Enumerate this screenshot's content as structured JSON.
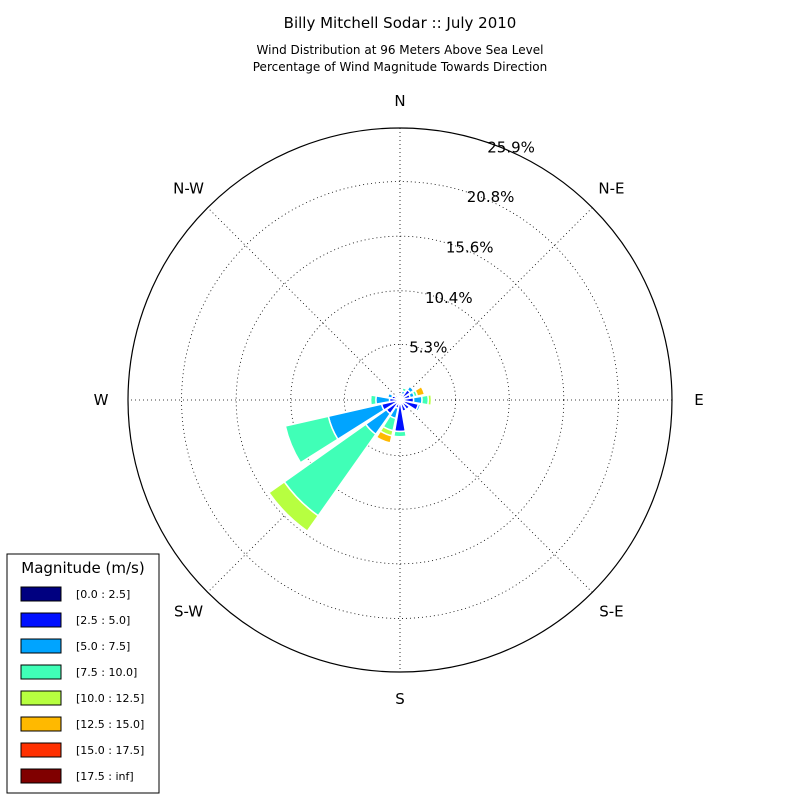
{
  "chart_data": {
    "type": "windrose",
    "title": "Billy Mitchell Sodar :: July 2010",
    "subtitle_lines": [
      "Wind Distribution at 96 Meters Above Sea Level",
      "Percentage of Wind Magnitude Towards Direction"
    ],
    "direction_labels": [
      "N",
      "N-E",
      "E",
      "S-E",
      "S",
      "S-W",
      "W",
      "N-W"
    ],
    "radial_tick_labels": [
      "5.3%",
      "10.4%",
      "15.6%",
      "20.8%",
      "25.9%"
    ],
    "radial_ticks": [
      5.3,
      10.4,
      15.6,
      20.8,
      25.9
    ],
    "rmax": 25.9,
    "grid": true,
    "legend_title": "Magnitude (m/s)",
    "legend_placement": "lower-left",
    "bins": [
      {
        "label": "[0.0 : 2.5]",
        "color": "#000080"
      },
      {
        "label": "[2.5 : 5.0]",
        "color": "#0010ff"
      },
      {
        "label": "[5.0 : 7.5]",
        "color": "#00a4ff"
      },
      {
        "label": "[7.5 : 10.0]",
        "color": "#40ffb7"
      },
      {
        "label": "[10.0 : 12.5]",
        "color": "#b7ff40"
      },
      {
        "label": "[12.5 : 15.0]",
        "color": "#ffb900"
      },
      {
        "label": "[15.0 : 17.5]",
        "color": "#ff3000"
      },
      {
        "label": "[17.5 : inf]",
        "color": "#800000"
      }
    ],
    "sector_width_deg": 19.5,
    "sectors": [
      {
        "direction_deg": 0,
        "cumulative": [
          0.3,
          0.6,
          0.6,
          0.6,
          0.6,
          0.6,
          0.6,
          0.6
        ]
      },
      {
        "direction_deg": 22.5,
        "cumulative": [
          0.2,
          0.6,
          0.9,
          1.2,
          1.2,
          1.2,
          1.2,
          1.2
        ]
      },
      {
        "direction_deg": 45,
        "cumulative": [
          0.2,
          1.2,
          1.6,
          1.7,
          1.7,
          1.7,
          1.7,
          1.7
        ]
      },
      {
        "direction_deg": 67.5,
        "cumulative": [
          0.2,
          1.0,
          1.4,
          1.7,
          1.7,
          2.4,
          2.4,
          2.4
        ]
      },
      {
        "direction_deg": 90,
        "cumulative": [
          0.2,
          1.3,
          2.1,
          2.7,
          3.0,
          3.0,
          3.0,
          3.0
        ]
      },
      {
        "direction_deg": 112.5,
        "cumulative": [
          0.2,
          1.8,
          2.0,
          2.0,
          2.0,
          2.0,
          2.0,
          2.0
        ]
      },
      {
        "direction_deg": 135,
        "cumulative": [
          0.2,
          1.1,
          1.1,
          1.1,
          1.1,
          1.1,
          1.1,
          1.1
        ]
      },
      {
        "direction_deg": 157.5,
        "cumulative": [
          0.2,
          1.1,
          1.1,
          1.1,
          1.1,
          1.1,
          1.1,
          1.1
        ]
      },
      {
        "direction_deg": 180,
        "cumulative": [
          0.2,
          3.0,
          3.0,
          3.5,
          3.5,
          3.5,
          3.5,
          3.5
        ]
      },
      {
        "direction_deg": 202.5,
        "cumulative": [
          0.2,
          0.8,
          1.8,
          3.0,
          3.5,
          4.2,
          4.2,
          4.2
        ]
      },
      {
        "direction_deg": 225,
        "cumulative": [
          0.3,
          1.6,
          4.0,
          13.5,
          15.3,
          15.4,
          15.5,
          15.5
        ]
      },
      {
        "direction_deg": 247.5,
        "cumulative": [
          0.3,
          1.8,
          7.0,
          11.2,
          11.2,
          11.2,
          11.2,
          11.2
        ]
      },
      {
        "direction_deg": 270,
        "cumulative": [
          0.2,
          1.0,
          2.3,
          2.8,
          2.8,
          2.8,
          2.8,
          2.8
        ]
      },
      {
        "direction_deg": 292.5,
        "cumulative": [
          0.2,
          0.8,
          1.2,
          1.2,
          1.2,
          1.2,
          1.2,
          1.2
        ]
      },
      {
        "direction_deg": 315,
        "cumulative": [
          0.2,
          0.4,
          0.4,
          0.4,
          0.4,
          0.4,
          0.4,
          0.4
        ]
      },
      {
        "direction_deg": 337.5,
        "cumulative": [
          0.2,
          0.4,
          0.4,
          0.4,
          0.4,
          0.4,
          0.4,
          0.4
        ]
      }
    ]
  }
}
